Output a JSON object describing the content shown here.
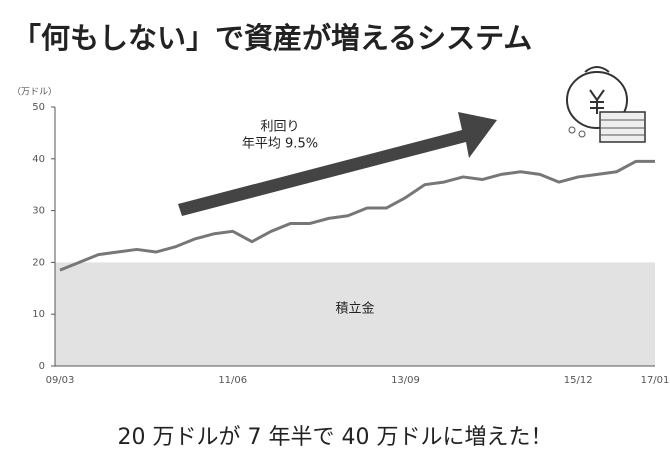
{
  "chart_data": {
    "type": "line",
    "title": "「何もしない」で資産が増えるシステム",
    "y_unit": "（万ドル）",
    "annotation": [
      "利回り",
      "年平均 9.5%"
    ],
    "caption": "20 万ドルが 7 年半で 40 万ドルに増えた！",
    "categories": [
      "09/03",
      null,
      null,
      null,
      null,
      null,
      null,
      null,
      null,
      "11/06",
      null,
      null,
      null,
      null,
      null,
      null,
      null,
      null,
      "13/09",
      null,
      null,
      null,
      null,
      null,
      null,
      null,
      null,
      "15/12",
      null,
      null,
      null,
      "17/01"
    ],
    "series": [
      {
        "color": "#777777",
        "values": [
          18.5,
          20,
          21.5,
          22,
          22.5,
          22,
          23,
          24.5,
          25.5,
          26,
          24,
          26,
          27.5,
          27.5,
          28.5,
          29,
          30.5,
          30.5,
          32.5,
          35,
          35.5,
          36.5,
          36,
          37,
          37.5,
          37,
          35.5,
          36.5,
          37,
          37.5,
          39.5,
          39.5
        ]
      }
    ],
    "savings": {
      "label": "積立金",
      "value": 20,
      "color": "#e2e2e2"
    },
    "ylim": [
      0,
      50
    ],
    "yticks": [
      0,
      10,
      20,
      30,
      40,
      50
    ]
  }
}
